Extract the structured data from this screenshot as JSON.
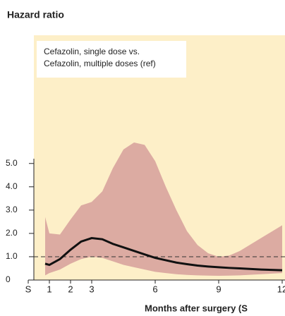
{
  "chart_data": {
    "type": "band-line",
    "title": "Hazard ratio",
    "annotation": [
      "Cefazolin, single dose vs.",
      "Cefazolin, multiple doses (ref)"
    ],
    "x_label": "Months after surgery (S",
    "x": [
      0.8,
      1,
      1.5,
      2,
      2.5,
      3,
      3.5,
      4,
      4.5,
      5,
      5.5,
      6,
      6.5,
      7,
      7.5,
      8,
      8.5,
      9,
      9.5,
      10,
      11,
      12
    ],
    "line": {
      "color": "#111111",
      "values": [
        0.7,
        0.65,
        0.9,
        1.3,
        1.65,
        1.8,
        1.75,
        1.55,
        1.4,
        1.25,
        1.1,
        0.95,
        0.85,
        0.75,
        0.68,
        0.62,
        0.58,
        0.55,
        0.52,
        0.5,
        0.45,
        0.42
      ]
    },
    "band": {
      "color": "#dcaba2",
      "upper": [
        2.7,
        2.0,
        1.95,
        2.6,
        3.2,
        3.35,
        3.8,
        4.8,
        5.6,
        5.9,
        5.8,
        5.1,
        4.0,
        3.0,
        2.1,
        1.5,
        1.15,
        1.0,
        1.05,
        1.25,
        1.8,
        2.35
      ],
      "lower": [
        0.2,
        0.3,
        0.45,
        0.7,
        0.9,
        1.0,
        0.95,
        0.8,
        0.65,
        0.55,
        0.45,
        0.35,
        0.3,
        0.25,
        0.22,
        0.2,
        0.19,
        0.18,
        0.19,
        0.2,
        0.25,
        0.3
      ]
    },
    "reference_line": 1,
    "background": "#fdefc8",
    "xlim": [
      0,
      12
    ],
    "xticks": [
      {
        "value": 0,
        "label": "S"
      },
      1,
      2,
      3,
      6,
      9,
      12
    ],
    "ylim": [
      0,
      10.5
    ],
    "yticks": [
      0,
      {
        "value": 1,
        "label": "1.0"
      },
      {
        "value": 2,
        "label": "2.0"
      },
      {
        "value": 3,
        "label": "3.0"
      },
      {
        "value": 4,
        "label": "4.0"
      },
      {
        "value": 5,
        "label": "5.0"
      }
    ]
  }
}
